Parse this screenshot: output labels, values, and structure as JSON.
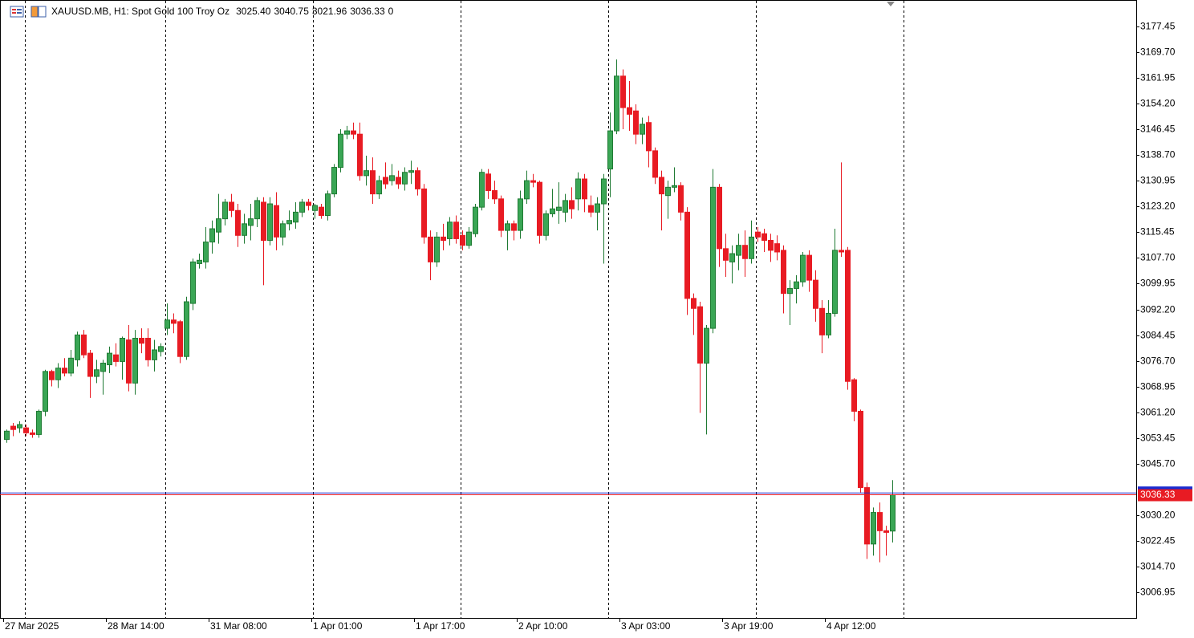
{
  "chart_data": {
    "type": "candlestick",
    "title": "XAUUSD.MB, H1:  Spot Gold 100 Troy Oz",
    "header_values": [
      {
        "value": 3025.4,
        "label": "3025.40"
      },
      3040.75,
      3021.96,
      3036.33,
      0
    ],
    "up_color": "#3aa655",
    "up_edge": "#1f7a33",
    "down_color": "#e81b23",
    "bid_color": "#e81b23",
    "ask_color": "#1a2bd0",
    "ask": 3036.9,
    "ylim": [
      2999.22,
      3185.43
    ],
    "yticks": [
      3177.45,
      {
        "value": 3169.7,
        "label": "3169.70"
      },
      3161.95,
      {
        "value": 3154.2,
        "label": "3154.20"
      },
      3146.45,
      {
        "value": 3138.7,
        "label": "3138.70"
      },
      3130.95,
      {
        "value": 3123.2,
        "label": "3123.20"
      },
      3115.45,
      {
        "value": 3107.7,
        "label": "3107.70"
      },
      3099.95,
      {
        "value": 3092.2,
        "label": "3092.20"
      },
      3084.45,
      {
        "value": 3076.7,
        "label": "3076.70"
      },
      3068.95,
      {
        "value": 3061.2,
        "label": "3061.20"
      },
      3053.45,
      {
        "value": 3045.7,
        "label": "3045.70"
      },
      {
        "value": 3030.2,
        "label": "3030.20"
      },
      3022.45,
      {
        "value": 3014.7,
        "label": "3014.70"
      },
      3006.95
    ],
    "categories": [
      "27 Mar 2025",
      null,
      null,
      null,
      null,
      null,
      null,
      null,
      null,
      null,
      null,
      null,
      null,
      null,
      null,
      null,
      "28 Mar 14:00",
      null,
      null,
      null,
      null,
      null,
      null,
      null,
      null,
      null,
      null,
      null,
      null,
      null,
      null,
      null,
      "31 Mar 08:00",
      null,
      null,
      null,
      null,
      null,
      null,
      null,
      null,
      null,
      null,
      null,
      null,
      null,
      null,
      null,
      "1 Apr 01:00",
      null,
      null,
      null,
      null,
      null,
      null,
      null,
      null,
      null,
      null,
      null,
      null,
      null,
      null,
      null,
      "1 Apr 17:00",
      null,
      null,
      null,
      null,
      null,
      null,
      null,
      null,
      null,
      null,
      null,
      null,
      null,
      null,
      null,
      "2 Apr 10:00",
      null,
      null,
      null,
      null,
      null,
      null,
      null,
      null,
      null,
      null,
      null,
      null,
      null,
      null,
      null,
      "3 Apr 03:00",
      null,
      null,
      null,
      null,
      null,
      null,
      null,
      null,
      null,
      null,
      null,
      null,
      null,
      null,
      null,
      "3 Apr 19:00",
      null,
      null,
      null,
      null,
      null,
      null,
      null,
      null,
      null,
      null,
      null,
      null,
      null,
      null,
      null,
      "4 Apr 12:00",
      null,
      null,
      null,
      null,
      null,
      null,
      null,
      null,
      null,
      null
    ],
    "open": [
      3053,
      3057,
      3056.5,
      3056.5,
      3055,
      3054.5,
      3061.5,
      3073.5,
      3071,
      3074.5,
      3073,
      3077,
      3084.5,
      3079,
      3072,
      3073.5,
      3075.5,
      3078.5,
      3076.5,
      3083,
      3070,
      3083.5,
      3083.5,
      3077,
      3079.5,
      3086.5,
      3089,
      3088.5,
      3078,
      3094,
      3106,
      3106.5,
      3112.5,
      3115.5,
      3119.5,
      3124.5,
      3122,
      3114.5,
      3117.5,
      3119.5,
      3124.5,
      3113,
      3123.5,
      3114,
      3118,
      3118.5,
      3121.5,
      3124.5,
      3122,
      3123,
      3120.5,
      3127,
      3135,
      3145,
      3146,
      3145,
      3132.5,
      3134,
      3127,
      3132,
      3131,
      3132,
      3130,
      3133.5,
      3134,
      3128.5,
      3114,
      3106.5,
      3114,
      3113.5,
      3118.5,
      3114.5,
      3111.5,
      3115,
      3123,
      3133,
      3128,
      3125.5,
      3116,
      3118,
      3116,
      3125.5,
      3131,
      3130.5,
      3114.5,
      3121,
      3122,
      3121.5,
      3125,
      3125.5,
      3131.5,
      3123.5,
      3121.5,
      3124,
      3134.5,
      3146,
      3162.5,
      3153,
      3152,
      3145,
      3148.5,
      3140,
      3132,
      3126.5,
      3129,
      3129.5,
      3121.5,
      3095.5,
      3093,
      3076,
      3086.5,
      3129,
      3110.5,
      3106.5,
      3108.5,
      3111.5,
      3107.5,
      3115.5,
      3115,
      3113,
      3112,
      3110,
      3097,
      3098.5,
      3100.5,
      3108.5,
      3101,
      3092.5,
      3084.5,
      3091,
      3110,
      3110,
      3071,
      3061.5,
      3038.5,
      3021.5,
      3031,
      3025.5,
      3025.4
    ],
    "high": [
      3056,
      3058,
      3058.5,
      3057.5,
      3056,
      3062,
      3074,
      3074,
      3076,
      3077.5,
      3080,
      3085.5,
      3086,
      3080,
      3077,
      3077,
      3081,
      3082,
      3084,
      3087.5,
      3086,
      3086.5,
      3086.5,
      3083,
      3082,
      3094,
      3091,
      3089,
      3096,
      3107.5,
      3109,
      3117,
      3119,
      3127,
      3125.5,
      3127,
      3124,
      3121,
      3124,
      3126,
      3126,
      3126,
      3127.5,
      3119,
      3122,
      3124.5,
      3125.5,
      3125.5,
      3124,
      3124,
      3128,
      3136,
      3146.5,
      3147.5,
      3148.5,
      3148.5,
      3138.5,
      3138,
      3132.5,
      3136.5,
      3136,
      3134,
      3135,
      3137,
      3135,
      3130,
      3116,
      3115.5,
      3118,
      3120,
      3120.5,
      3116,
      3117,
      3124,
      3134.5,
      3134.5,
      3131,
      3126.5,
      3119,
      3119,
      3128,
      3134,
      3133,
      3131,
      3122,
      3128.5,
      3130.5,
      3127,
      3129,
      3133.5,
      3133,
      3126.5,
      3126,
      3133,
      3151.5,
      3167.5,
      3164.5,
      3161,
      3154,
      3150,
      3150.5,
      3141,
      3134,
      3131,
      3135,
      3130.5,
      3123,
      3097,
      3094.5,
      3087.5,
      3134.5,
      3130,
      3115,
      3111.5,
      3115,
      3116,
      3119,
      3117,
      3116.5,
      3115,
      3114.5,
      3111.5,
      3101,
      3102.5,
      3109.5,
      3110,
      3104,
      3095,
      3095,
      3116.5,
      3136.5,
      3111,
      3071.5,
      3062,
      3040,
      3032.5,
      3034,
      3027,
      3040.75
    ],
    "low": [
      3052,
      3054,
      3055,
      3054,
      3053.5,
      3053.5,
      3060,
      3069,
      3068.5,
      3072,
      3072,
      3075,
      3077.5,
      3065.5,
      3070,
      3066.5,
      3073,
      3075,
      3071,
      3067.5,
      3066.5,
      3079,
      3075,
      3073.5,
      3078,
      3084.5,
      3085,
      3076,
      3077,
      3092,
      3104.5,
      3104.5,
      3109,
      3112,
      3117.5,
      3120,
      3111,
      3112,
      3113,
      3117,
      3099.5,
      3111.5,
      3110,
      3111.5,
      3116,
      3116.5,
      3120,
      3122,
      3119.5,
      3119.5,
      3119,
      3126,
      3133.5,
      3143.5,
      3143.5,
      3131,
      3129.5,
      3124,
      3125.5,
      3128.5,
      3129.5,
      3128.5,
      3128,
      3130,
      3126.5,
      3112,
      3101,
      3105,
      3110,
      3111.5,
      3112,
      3110,
      3110.5,
      3114,
      3122,
      3125.5,
      3124,
      3114,
      3110,
      3113,
      3113.5,
      3124,
      3129,
      3112,
      3113,
      3120,
      3118,
      3118.5,
      3119.5,
      3122,
      3121.5,
      3120,
      3116,
      3106,
      3126,
      3145,
      3146.5,
      3146,
      3142,
      3142,
      3135,
      3130,
      3116,
      3119.5,
      3127.5,
      3119,
      3090.5,
      3084.5,
      3061,
      3054.5,
      3085,
      3105,
      3102,
      3100,
      3104,
      3102,
      3106,
      3112.5,
      3109.5,
      3106.5,
      3107,
      3091,
      3087.5,
      3094,
      3099,
      3097.5,
      3088.5,
      3079,
      3083.5,
      3090,
      3108,
      3068,
      3058.5,
      3037,
      3017,
      3018,
      3016,
      3018,
      3021.96
    ],
    "close": [
      3055.5,
      3056,
      3057.5,
      3055,
      3054.5,
      3061.5,
      3073.5,
      3071,
      3074.5,
      3073,
      3077.5,
      3084.5,
      3078.5,
      3072,
      3074,
      3076,
      3079,
      3076.5,
      3083.5,
      3070,
      3083.5,
      3082,
      3077,
      3080,
      3081,
      3089,
      3088,
      3078,
      3094.5,
      3106.5,
      3107,
      3112.5,
      3116.5,
      3119.5,
      3124.5,
      3122,
      3114.5,
      3118,
      3119.5,
      3125,
      3113,
      3124,
      3114,
      3118,
      3119,
      3121.5,
      3124.5,
      3123.5,
      3123.5,
      3120.5,
      3127,
      3135,
      3145,
      3146,
      3145,
      3132.5,
      3134,
      3127,
      3131,
      3130,
      3132.5,
      3130,
      3133.5,
      3134,
      3128.5,
      3114,
      3106.5,
      3114,
      3113,
      3118.5,
      3113.5,
      3111.5,
      3115.5,
      3123,
      3133.5,
      3128,
      3125.5,
      3116,
      3118,
      3116,
      3125.5,
      3131,
      3130.5,
      3114.5,
      3121,
      3122.5,
      3123,
      3125,
      3122.5,
      3131.5,
      3125.5,
      3121.5,
      3124,
      3131.5,
      3146,
      3162.5,
      3153,
      3151,
      3145,
      3148,
      3140,
      3132,
      3127,
      3129,
      3129.5,
      3121.5,
      3095.5,
      3092.5,
      3076,
      3086.5,
      3129,
      3110.5,
      3107,
      3109,
      3111.5,
      3107.5,
      3114,
      3114,
      3113,
      3110,
      3109.5,
      3097,
      3098.5,
      3100.5,
      3108.5,
      3101,
      3092.5,
      3084.5,
      3091,
      3110,
      3109.5,
      3070.5,
      3061.5,
      3038.5,
      3021.5,
      3031,
      3025.5,
      3025,
      3036.33
    ]
  }
}
